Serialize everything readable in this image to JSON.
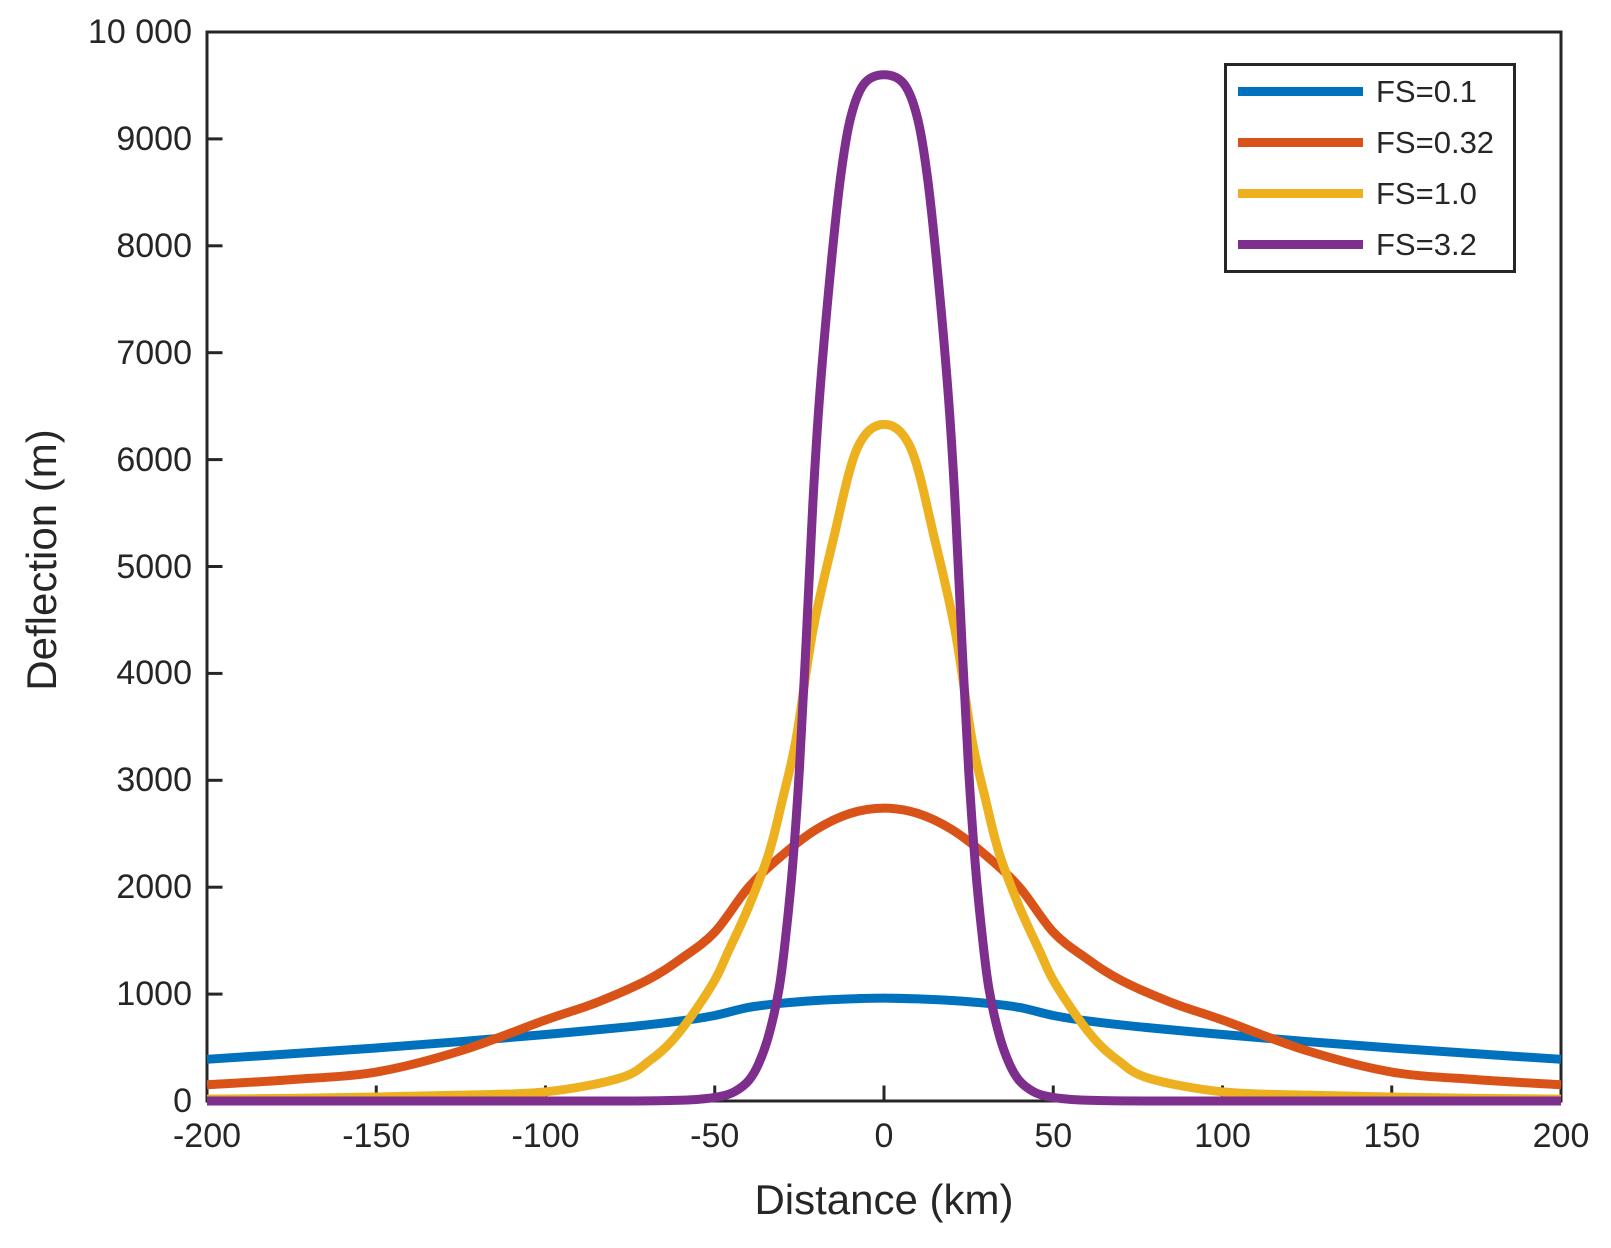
{
  "figure": {
    "background": "#FFFFFF",
    "axis_color": "#262626",
    "text_color": "#262626"
  },
  "chart_data": {
    "type": "line",
    "title": "",
    "xlabel": "Distance (km)",
    "ylabel": "Deflection (m)",
    "xlim": [
      -200,
      200
    ],
    "ylim": [
      0,
      10000
    ],
    "grid": false,
    "legend_position": "top-right",
    "line_width": 9,
    "x_ticks": [
      -200,
      -150,
      -100,
      -50,
      0,
      50,
      100,
      150,
      200
    ],
    "x_tick_labels": [
      "-200",
      "-150",
      "-100",
      "-50",
      "0",
      "50",
      "100",
      "150",
      "200"
    ],
    "y_ticks": [
      0,
      1000,
      2000,
      3000,
      4000,
      5000,
      6000,
      7000,
      8000,
      9000,
      10000
    ],
    "y_tick_labels": [
      "0",
      "1000",
      "2000",
      "3000",
      "4000",
      "5000",
      "6000",
      "7000",
      "8000",
      "9000",
      "10 000"
    ],
    "series": [
      {
        "name": "FS=0.1",
        "color": "#0072BD",
        "peak_value": 962,
        "x": [
          -200,
          -175,
          -150,
          -125,
          -100,
          -75,
          -60,
          -50,
          -40,
          -30,
          -20,
          -10,
          0,
          10,
          20,
          30,
          40,
          50,
          60,
          75,
          100,
          125,
          150,
          175,
          200
        ],
        "y": [
          390,
          442,
          496,
          556,
          622,
          695,
          750,
          800,
          875,
          915,
          940,
          955,
          962,
          955,
          940,
          915,
          875,
          800,
          750,
          695,
          622,
          556,
          496,
          442,
          390
        ]
      },
      {
        "name": "FS=0.32",
        "color": "#D95319",
        "peak_value": 2740,
        "x": [
          -200,
          -175,
          -150,
          -125,
          -100,
          -85,
          -70,
          -60,
          -50,
          -40,
          -30,
          -20,
          -10,
          0,
          10,
          20,
          30,
          40,
          50,
          60,
          70,
          85,
          100,
          125,
          150,
          175,
          200
        ],
        "y": [
          152,
          200,
          271,
          470,
          758,
          920,
          1130,
          1330,
          1580,
          2000,
          2300,
          2540,
          2690,
          2740,
          2690,
          2540,
          2300,
          2000,
          1580,
          1330,
          1130,
          920,
          758,
          470,
          271,
          200,
          152
        ]
      },
      {
        "name": "FS=1.0",
        "color": "#EDB120",
        "peak_value": 6330,
        "x": [
          -200,
          -175,
          -150,
          -125,
          -100,
          -78,
          -69,
          -63,
          -57,
          -50,
          -46,
          -40,
          -34,
          -30,
          -26,
          -21,
          -15,
          -8,
          0,
          8,
          15,
          21,
          26,
          30,
          34,
          40,
          46,
          50,
          57,
          63,
          69,
          78,
          100,
          125,
          150,
          175,
          200
        ],
        "y": [
          18,
          25,
          37,
          55,
          85,
          215,
          383,
          550,
          790,
          1130,
          1400,
          1815,
          2320,
          2820,
          3380,
          4400,
          5250,
          6100,
          6330,
          6100,
          5250,
          4400,
          3380,
          2820,
          2320,
          1815,
          1400,
          1130,
          790,
          550,
          383,
          215,
          85,
          55,
          37,
          25,
          18
        ]
      },
      {
        "name": "FS=3.2",
        "color": "#7E2F8E",
        "peak_value": 9600,
        "x": [
          -200,
          -120,
          -80,
          -65,
          -55,
          -48,
          -44,
          -40,
          -37,
          -34,
          -31,
          -29,
          -27,
          -25,
          -23,
          -21,
          -19,
          -16,
          -13,
          -10,
          -6,
          0,
          6,
          10,
          13,
          16,
          19,
          21,
          23,
          25,
          27,
          29,
          31,
          34,
          37,
          40,
          44,
          48,
          55,
          65,
          80,
          120,
          200
        ],
        "y": [
          0,
          0,
          0,
          3,
          15,
          45,
          90,
          190,
          350,
          620,
          1050,
          1550,
          2200,
          3100,
          4300,
          5600,
          6600,
          7700,
          8600,
          9180,
          9510,
          9600,
          9510,
          9180,
          8600,
          7700,
          6600,
          5600,
          4300,
          3100,
          2200,
          1550,
          1050,
          620,
          350,
          190,
          90,
          45,
          15,
          3,
          0,
          0,
          0
        ]
      }
    ]
  }
}
